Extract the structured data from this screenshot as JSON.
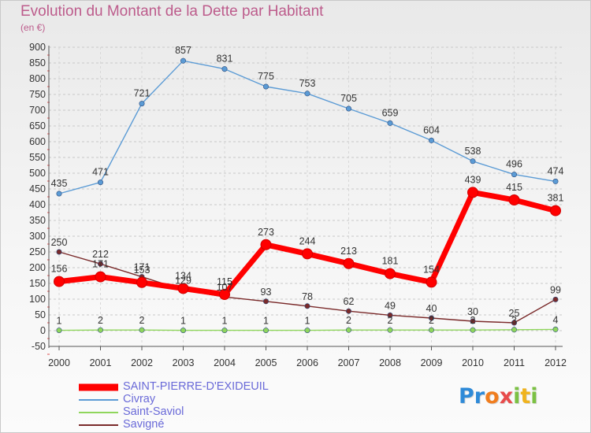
{
  "chart_data": {
    "type": "line",
    "title": "Evolution du Montant de la Dette par Habitant",
    "unit_label": "(en €)",
    "xlabel": "",
    "ylabel": "",
    "x": [
      2000,
      2001,
      2002,
      2003,
      2004,
      2005,
      2006,
      2007,
      2008,
      2009,
      2010,
      2011,
      2012
    ],
    "ylim": [
      -50,
      900
    ],
    "yticks": [
      -50,
      0,
      50,
      100,
      150,
      200,
      250,
      300,
      350,
      400,
      450,
      500,
      550,
      600,
      650,
      700,
      750,
      800,
      850,
      900
    ],
    "grid": "horizontal dashed",
    "legend_position": "bottom-left",
    "series": [
      {
        "name": "SAINT-PIERRE-D'EXIDEUIL",
        "color": "#ff0000",
        "emphasis": true,
        "values": [
          156,
          171,
          153,
          134,
          115,
          273,
          244,
          213,
          181,
          154,
          439,
          415,
          381
        ],
        "labels": [
          "156",
          "171",
          "153",
          "134",
          "115",
          "273",
          "244",
          "213",
          "181",
          "154",
          "439",
          "415",
          "381"
        ]
      },
      {
        "name": "Civray",
        "color": "#5b9bd5",
        "emphasis": false,
        "values": [
          435,
          471,
          721,
          857,
          831,
          775,
          753,
          705,
          659,
          604,
          538,
          496,
          474
        ],
        "labels": [
          "435",
          "471",
          "721",
          "857",
          "831",
          "775",
          "753",
          "705",
          "659",
          "604",
          "538",
          "496",
          "474"
        ]
      },
      {
        "name": "Saint-Saviol",
        "color": "#8fd65c",
        "emphasis": false,
        "values": [
          1,
          2,
          2,
          1,
          1,
          1,
          1,
          2,
          2,
          2,
          2,
          3,
          4
        ],
        "labels": [
          "1",
          "2",
          "2",
          "1",
          "1",
          "1",
          "1",
          "2",
          "2",
          "2",
          "2",
          "3",
          "4"
        ]
      },
      {
        "name": "Savigné",
        "color": "#7a2a2a",
        "emphasis": false,
        "values": [
          250,
          212,
          171,
          129,
          107,
          93,
          78,
          62,
          49,
          40,
          30,
          25,
          99
        ],
        "labels": [
          "250",
          "212",
          "171",
          "129",
          "107",
          "93",
          "78",
          "62",
          "49",
          "40",
          "30",
          "25",
          "99"
        ]
      }
    ]
  },
  "legend_order": [
    0,
    1,
    2,
    3
  ],
  "branding": {
    "logo_text": "Proxiti"
  }
}
